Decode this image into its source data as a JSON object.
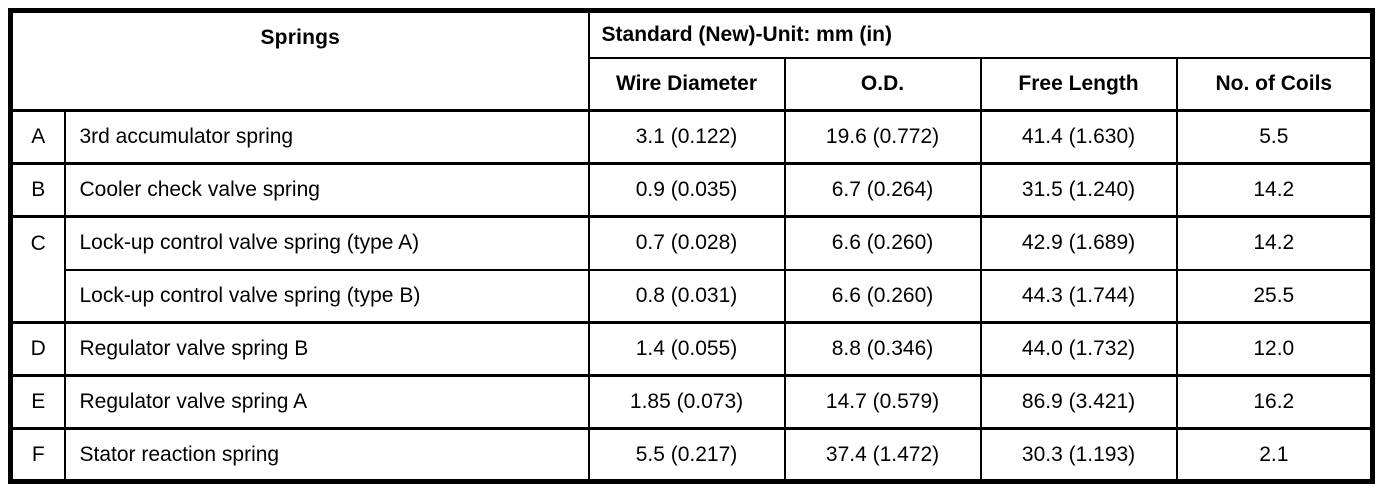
{
  "table": {
    "springs_header": "Springs",
    "standard_header": "Standard (New)-Unit: mm (in)",
    "columns": [
      "Wire Diameter",
      "O.D.",
      "Free Length",
      "No. of Coils"
    ],
    "groups": [
      {
        "letter": "A",
        "rows": [
          {
            "name": "3rd accumulator spring",
            "wire_diameter": "3.1 (0.122)",
            "od": "19.6 (0.772)",
            "free_length": "41.4 (1.630)",
            "coils": "5.5"
          }
        ]
      },
      {
        "letter": "B",
        "rows": [
          {
            "name": "Cooler check valve spring",
            "wire_diameter": "0.9 (0.035)",
            "od": "6.7 (0.264)",
            "free_length": "31.5 (1.240)",
            "coils": "14.2"
          }
        ]
      },
      {
        "letter": "C",
        "rows": [
          {
            "name": "Lock-up control valve spring (type A)",
            "wire_diameter": "0.7 (0.028)",
            "od": "6.6 (0.260)",
            "free_length": "42.9 (1.689)",
            "coils": "14.2"
          },
          {
            "name": "Lock-up control valve spring (type B)",
            "wire_diameter": "0.8 (0.031)",
            "od": "6.6 (0.260)",
            "free_length": "44.3 (1.744)",
            "coils": "25.5"
          }
        ]
      },
      {
        "letter": "D",
        "rows": [
          {
            "name": "Regulator valve spring B",
            "wire_diameter": "1.4 (0.055)",
            "od": "8.8 (0.346)",
            "free_length": "44.0 (1.732)",
            "coils": "12.0"
          }
        ]
      },
      {
        "letter": "E",
        "rows": [
          {
            "name": "Regulator valve spring A",
            "wire_diameter": "1.85 (0.073)",
            "od": "14.7 (0.579)",
            "free_length": "86.9 (3.421)",
            "coils": "16.2"
          }
        ]
      },
      {
        "letter": "F",
        "rows": [
          {
            "name": "Stator reaction spring",
            "wire_diameter": "5.5 (0.217)",
            "od": "37.4 (1.472)",
            "free_length": "30.3 (1.193)",
            "coils": "2.1"
          }
        ]
      }
    ],
    "colors": {
      "border": "#000000",
      "background": "#ffffff",
      "text": "#000000"
    }
  }
}
